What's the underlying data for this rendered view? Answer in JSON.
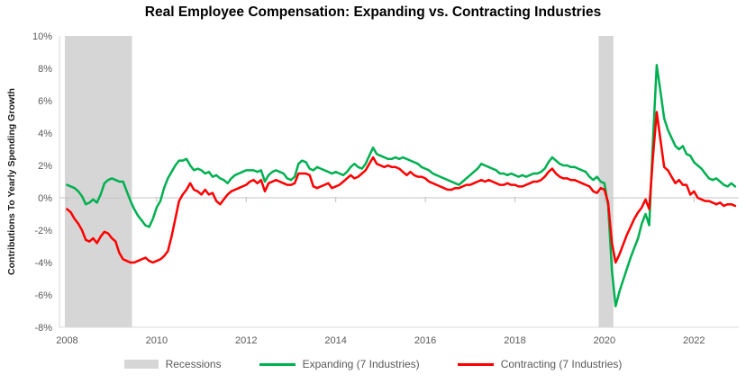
{
  "title": "Real Employee Compensation: Expanding vs. Contracting Industries",
  "chart_data": {
    "type": "line",
    "title": "Real Employee Compensation: Expanding vs. Contracting Industries",
    "xlabel": "",
    "ylabel": "Contributions To Yearly Spending Growth",
    "xlim": [
      2007.83,
      2023.0
    ],
    "ylim": [
      -8,
      10
    ],
    "grid": "zero-line-only",
    "legend_position": "bottom",
    "x_start_year": 2008,
    "x_step": "monthly",
    "yticks": [
      {
        "v": 10,
        "label": "10%"
      },
      {
        "v": 8,
        "label": "8%"
      },
      {
        "v": 6,
        "label": "6%"
      },
      {
        "v": 4,
        "label": "4%"
      },
      {
        "v": 2,
        "label": "2%"
      },
      {
        "v": 0,
        "label": "0%"
      },
      {
        "v": -2,
        "label": "-2%"
      },
      {
        "v": -4,
        "label": "-4%"
      },
      {
        "v": -6,
        "label": "-6%"
      },
      {
        "v": -8,
        "label": "-8%"
      }
    ],
    "xticks": [
      {
        "v": 2008,
        "label": "2008"
      },
      {
        "v": 2010,
        "label": "2010"
      },
      {
        "v": 2012,
        "label": "2012"
      },
      {
        "v": 2014,
        "label": "2014"
      },
      {
        "v": 2016,
        "label": "2016"
      },
      {
        "v": 2018,
        "label": "2018"
      },
      {
        "v": 2020,
        "label": "2020"
      },
      {
        "v": 2022,
        "label": "2022"
      }
    ],
    "recession_label": "Recessions",
    "recession_color": "#D6D6D6",
    "recessions": [
      {
        "start": 2007.95,
        "end": 2009.45
      },
      {
        "start": 2019.87,
        "end": 2020.2
      }
    ],
    "axis_colors": {
      "zero_line": "#c6c6c6",
      "border": "#d9d9d9",
      "tick": "#bfbfbf"
    },
    "series": [
      {
        "name": "Expanding (7 Industries)",
        "color": "#00B050",
        "values": [
          0.8,
          0.7,
          0.6,
          0.4,
          0.1,
          -0.4,
          -0.3,
          -0.1,
          -0.3,
          0.2,
          0.9,
          1.1,
          1.2,
          1.1,
          1.0,
          1.0,
          0.4,
          -0.2,
          -0.7,
          -1.1,
          -1.4,
          -1.7,
          -1.8,
          -1.3,
          -0.6,
          -0.2,
          0.6,
          1.2,
          1.6,
          2.0,
          2.3,
          2.3,
          2.4,
          2.0,
          1.7,
          1.8,
          1.7,
          1.5,
          1.6,
          1.3,
          1.4,
          1.2,
          1.1,
          0.9,
          1.2,
          1.4,
          1.5,
          1.6,
          1.7,
          1.7,
          1.7,
          1.6,
          1.7,
          1.0,
          1.4,
          1.6,
          1.7,
          1.6,
          1.5,
          1.2,
          1.1,
          1.3,
          2.1,
          2.3,
          2.2,
          1.8,
          1.7,
          1.9,
          1.8,
          1.7,
          1.6,
          1.5,
          1.6,
          1.5,
          1.4,
          1.6,
          1.9,
          2.1,
          1.9,
          1.8,
          2.1,
          2.6,
          3.1,
          2.7,
          2.6,
          2.5,
          2.4,
          2.4,
          2.5,
          2.4,
          2.5,
          2.4,
          2.3,
          2.2,
          2.1,
          1.9,
          1.8,
          1.7,
          1.5,
          1.4,
          1.3,
          1.2,
          1.1,
          1.0,
          0.9,
          0.8,
          1.0,
          1.2,
          1.4,
          1.6,
          1.8,
          2.1,
          2.0,
          1.9,
          1.8,
          1.7,
          1.5,
          1.5,
          1.4,
          1.5,
          1.4,
          1.3,
          1.4,
          1.3,
          1.4,
          1.5,
          1.5,
          1.6,
          1.8,
          2.2,
          2.5,
          2.3,
          2.1,
          2.0,
          2.0,
          1.9,
          1.9,
          1.8,
          1.7,
          1.6,
          1.3,
          1.1,
          1.3,
          1.0,
          0.9,
          -0.5,
          -4.5,
          -6.7,
          -5.8,
          -5.1,
          -4.4,
          -3.7,
          -3.1,
          -2.5,
          -1.6,
          -1.0,
          -1.7,
          3.5,
          8.2,
          6.6,
          4.9,
          4.2,
          3.7,
          3.2,
          3.0,
          3.2,
          2.7,
          2.6,
          2.2,
          2.0,
          1.8,
          1.5,
          1.2,
          1.1,
          1.2,
          1.0,
          0.8,
          0.7,
          0.9,
          0.7
        ]
      },
      {
        "name": "Contracting (7 Industries)",
        "color": "#FF0000",
        "values": [
          -0.7,
          -0.9,
          -1.3,
          -1.6,
          -2.0,
          -2.6,
          -2.7,
          -2.5,
          -2.8,
          -2.4,
          -2.1,
          -2.2,
          -2.5,
          -2.7,
          -3.4,
          -3.8,
          -3.9,
          -4.0,
          -4.0,
          -3.9,
          -3.8,
          -3.7,
          -3.9,
          -4.0,
          -3.9,
          -3.8,
          -3.6,
          -3.3,
          -2.4,
          -1.3,
          -0.2,
          0.2,
          0.5,
          0.9,
          0.5,
          0.4,
          0.2,
          0.5,
          0.2,
          0.3,
          -0.2,
          -0.4,
          -0.1,
          0.2,
          0.4,
          0.5,
          0.6,
          0.7,
          0.8,
          1.0,
          1.1,
          0.9,
          1.1,
          0.4,
          0.9,
          1.0,
          1.1,
          1.0,
          0.9,
          0.8,
          0.8,
          0.9,
          1.5,
          1.5,
          1.5,
          1.4,
          0.7,
          0.6,
          0.7,
          0.8,
          0.9,
          0.6,
          0.7,
          0.8,
          1.0,
          1.2,
          1.4,
          1.2,
          1.3,
          1.5,
          1.7,
          2.1,
          2.5,
          2.1,
          2.0,
          1.9,
          2.0,
          1.9,
          1.9,
          1.8,
          1.6,
          1.4,
          1.6,
          1.4,
          1.3,
          1.3,
          1.2,
          1.0,
          0.9,
          0.8,
          0.7,
          0.6,
          0.5,
          0.5,
          0.6,
          0.6,
          0.7,
          0.8,
          0.8,
          0.9,
          1.0,
          1.1,
          1.0,
          1.1,
          1.0,
          0.9,
          0.8,
          0.8,
          0.9,
          0.8,
          0.8,
          0.7,
          0.7,
          0.8,
          0.9,
          1.0,
          1.0,
          1.1,
          1.3,
          1.6,
          1.8,
          1.5,
          1.3,
          1.2,
          1.2,
          1.1,
          1.1,
          1.0,
          0.9,
          0.8,
          0.7,
          0.4,
          0.3,
          0.6,
          0.5,
          -0.3,
          -2.8,
          -4.0,
          -3.5,
          -2.9,
          -2.3,
          -1.8,
          -1.3,
          -0.9,
          -0.6,
          -0.1,
          -0.7,
          2.5,
          5.3,
          3.6,
          1.9,
          1.7,
          1.3,
          0.9,
          1.1,
          0.8,
          0.8,
          0.2,
          0.4,
          0.0,
          -0.1,
          -0.2,
          -0.2,
          -0.3,
          -0.4,
          -0.3,
          -0.5,
          -0.4,
          -0.4,
          -0.5
        ]
      }
    ]
  }
}
